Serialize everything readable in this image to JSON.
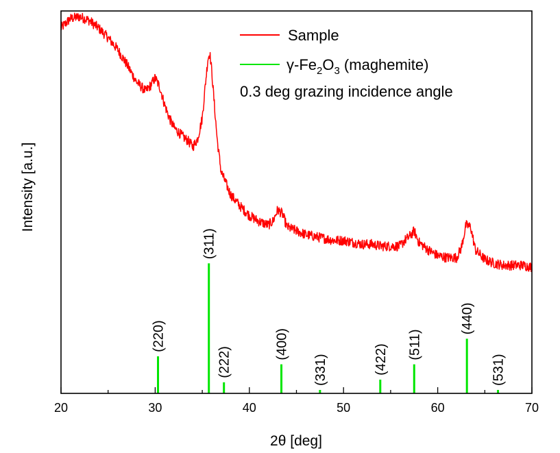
{
  "chart_data": {
    "type": "line",
    "xlabel": "2θ [deg]",
    "ylabel": "Intensity [a.u.]",
    "xlim": [
      20,
      70
    ],
    "ylim": [
      0,
      100
    ],
    "x_ticks": [
      20,
      30,
      40,
      50,
      60,
      70
    ],
    "grid": false,
    "legend_position": "top-right",
    "legend": {
      "sample": "Sample",
      "ref_prefix": "γ-Fe",
      "ref_sub1": "2",
      "ref_mid": "O",
      "ref_sub2": "3",
      "ref_suffix": " (maghemite)",
      "note": "0.3 deg grazing incidence angle"
    },
    "series": [
      {
        "name": "Sample",
        "color": "#ff0000",
        "x": [
          20,
          21,
          22,
          23,
          24,
          25,
          26,
          27,
          28,
          29,
          29.5,
          30,
          30.5,
          31,
          31.5,
          32,
          33,
          33.5,
          34,
          34.5,
          35,
          35.3,
          35.6,
          35.8,
          36,
          36.3,
          36.6,
          37,
          38,
          39,
          40,
          41,
          42,
          42.5,
          43,
          43.5,
          44,
          45,
          46,
          47,
          48,
          49,
          50,
          51,
          52,
          53,
          54,
          55,
          56,
          56.5,
          57,
          57.5,
          58,
          59,
          60,
          61,
          62,
          62.5,
          63,
          63.5,
          64,
          65,
          66,
          67,
          68,
          69,
          70
        ],
        "y": [
          95.5,
          98.0,
          98.5,
          97.5,
          95.5,
          93.0,
          90.0,
          86.0,
          81.5,
          79.0,
          80.5,
          82.5,
          80.0,
          75.5,
          72.0,
          69.5,
          67.0,
          66.0,
          64.5,
          66.5,
          72.0,
          80.0,
          87.5,
          89.0,
          84.5,
          75.0,
          66.0,
          58.0,
          52.0,
          49.0,
          46.5,
          45.0,
          44.0,
          45.0,
          48.0,
          47.0,
          43.5,
          42.5,
          41.5,
          41.0,
          40.5,
          40.0,
          40.0,
          39.5,
          39.0,
          39.0,
          38.5,
          38.5,
          38.5,
          40.0,
          41.0,
          42.5,
          39.5,
          37.5,
          36.0,
          35.5,
          35.5,
          38.0,
          44.0,
          43.5,
          37.5,
          35.0,
          34.0,
          33.5,
          33.5,
          33.5,
          33.0
        ]
      }
    ],
    "reference": {
      "name": "γ-Fe2O3 (maghemite)",
      "color": "#00e600",
      "peaks": [
        {
          "x": 30.3,
          "height": 9.7,
          "label": "(220)"
        },
        {
          "x": 35.7,
          "height": 34.0,
          "label": "(311)"
        },
        {
          "x": 37.3,
          "height": 2.9,
          "label": "(222)"
        },
        {
          "x": 43.4,
          "height": 7.6,
          "label": "(400)"
        },
        {
          "x": 47.5,
          "height": 0.9,
          "label": "(331)"
        },
        {
          "x": 53.9,
          "height": 3.6,
          "label": "(422)"
        },
        {
          "x": 57.5,
          "height": 7.6,
          "label": "(511)"
        },
        {
          "x": 63.1,
          "height": 14.3,
          "label": "(440)"
        },
        {
          "x": 66.4,
          "height": 0.9,
          "label": "(531)"
        }
      ]
    }
  }
}
